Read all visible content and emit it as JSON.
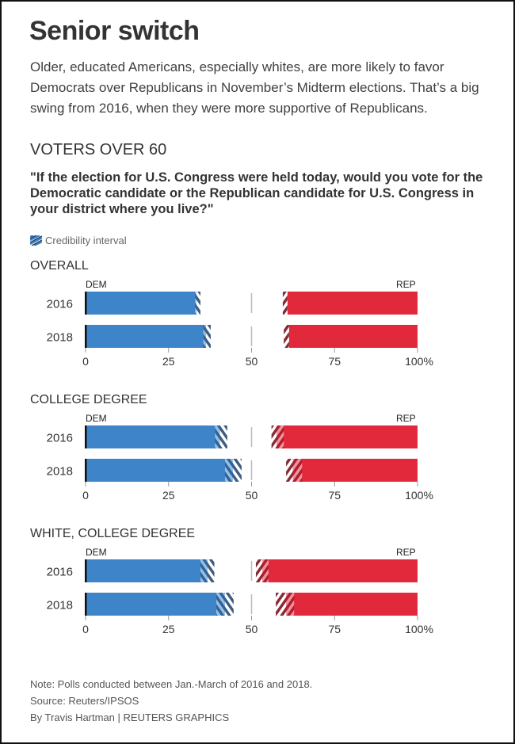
{
  "header": {
    "title": "Senior switch",
    "subtitle": "Older, educated Americans, especially whites, are more likely to favor Democrats over Republicans in November’s Midterm elections. That’s a big swing from 2016, when they were more supportive of Republicans.",
    "section": "VOTERS OVER 60",
    "question": "\"If the election for U.S. Congress were held today, would you vote for the Democratic candidate or the Republican candidate for U.S. Congress in your district where you live?\""
  },
  "legend": {
    "label": "Credibility interval",
    "icon": "hatch-swatch-icon"
  },
  "footer": {
    "note": "Note: Polls conducted between Jan.-March of 2016 and 2018.",
    "source": "Source: Reuters/IPSOS",
    "credit": "By Travis Hartman | REUTERS GRAPHICS"
  },
  "colors": {
    "dem": "#3d85c8",
    "rep": "#e2293b",
    "dem_hatch": "#1f3f66",
    "rep_hatch": "#7a1520",
    "text": "#333333"
  },
  "chart_data": {
    "type": "bar",
    "orientation": "horizontal-diverging",
    "title": "VOTERS OVER 60",
    "xlim": [
      0,
      100
    ],
    "x_ticks": [
      "0",
      "25",
      "50",
      "75",
      "100%"
    ],
    "x_tick_values": [
      0,
      25,
      50,
      75,
      100
    ],
    "midline": 50,
    "series_labels": {
      "dem": "DEM",
      "rep": "REP"
    },
    "units": "percent",
    "panels": [
      {
        "name": "OVERALL",
        "rows": [
          {
            "year": "2016",
            "dem": 33.4,
            "dem_ci": [
              33.0,
              34.6
            ],
            "rep": 39.2,
            "rep_ci": [
              39.2,
              40.6
            ]
          },
          {
            "year": "2018",
            "dem": 36.3,
            "dem_ci": [
              35.5,
              37.7
            ],
            "rep": 38.7,
            "rep_ci": [
              38.7,
              40.3
            ]
          }
        ]
      },
      {
        "name": "COLLEGE DEGREE",
        "rows": [
          {
            "year": "2016",
            "dem": 40.5,
            "dem_ci": [
              39.0,
              42.7
            ],
            "rep": 42.5,
            "rep_ci": [
              40.3,
              44.0
            ]
          },
          {
            "year": "2018",
            "dem": 44.4,
            "dem_ci": [
              42.0,
              47.0
            ],
            "rep": 37.6,
            "rep_ci": [
              34.8,
              39.6
            ]
          }
        ]
      },
      {
        "name": "WHITE, COLLEGE DEGREE",
        "rows": [
          {
            "year": "2016",
            "dem": 36.8,
            "dem_ci": [
              34.6,
              38.8
            ],
            "rep": 46.8,
            "rep_ci": [
              44.9,
              48.7
            ]
          },
          {
            "year": "2018",
            "dem": 42.0,
            "dem_ci": [
              39.4,
              44.6
            ],
            "rep": 39.6,
            "rep_ci": [
              37.2,
              42.7
            ]
          }
        ]
      }
    ]
  }
}
